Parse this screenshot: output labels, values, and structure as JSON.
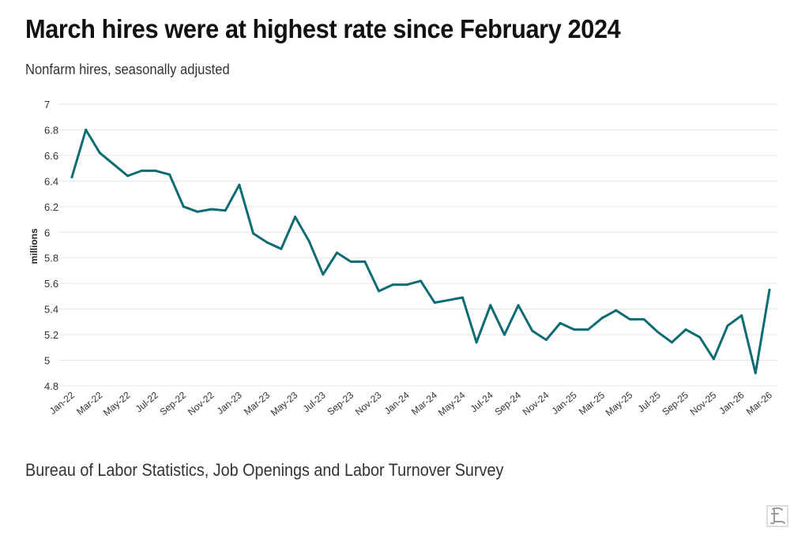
{
  "header": {
    "title": "March hires were at highest rate since February 2024",
    "subtitle": "Nonfarm hires, seasonally adjusted"
  },
  "footer": {
    "source": "Bureau of Labor Statistics, Job Openings and Labor Turnover Survey"
  },
  "colors": {
    "line": "#0d6b73",
    "grid": "#e6e6e6",
    "text": "#333333"
  },
  "chart_data": {
    "type": "line",
    "title": "March hires were at highest rate since February 2024",
    "subtitle": "Nonfarm hires, seasonally adjusted",
    "ylabel": "millions",
    "xlabel": "",
    "ylim": [
      4.8,
      7
    ],
    "yticks": [
      4.8,
      5,
      5.2,
      5.4,
      5.6,
      5.8,
      6,
      6.2,
      6.4,
      6.6,
      6.8,
      7
    ],
    "grid": true,
    "legend": "none",
    "x_tick_labels": [
      "Jan-22",
      "Mar-22",
      "May-22",
      "Jul-22",
      "Sep-22",
      "Nov-22",
      "Jan-23",
      "Mar-23",
      "May-23",
      "Jul-23",
      "Sep-23",
      "Nov-23",
      "Jan-24",
      "Mar-24",
      "May-24",
      "Jul-24",
      "Sep-24",
      "Nov-24",
      "Jan-25",
      "Mar-25",
      "May-25",
      "Jul-25",
      "Sep-25",
      "Nov-25",
      "Jan-26",
      "Mar-26"
    ],
    "x": [
      "Jan-22",
      "Feb-22",
      "Mar-22",
      "Apr-22",
      "May-22",
      "Jun-22",
      "Jul-22",
      "Aug-22",
      "Sep-22",
      "Oct-22",
      "Nov-22",
      "Dec-22",
      "Jan-23",
      "Feb-23",
      "Mar-23",
      "Apr-23",
      "May-23",
      "Jun-23",
      "Jul-23",
      "Aug-23",
      "Sep-23",
      "Oct-23",
      "Nov-23",
      "Dec-23",
      "Jan-24",
      "Feb-24",
      "Mar-24",
      "Apr-24",
      "May-24",
      "Jun-24",
      "Jul-24",
      "Aug-24",
      "Sep-24",
      "Oct-24",
      "Nov-24",
      "Dec-24",
      "Jan-25",
      "Feb-25",
      "Mar-25",
      "Apr-25",
      "May-25",
      "Jun-25",
      "Jul-25",
      "Aug-25",
      "Sep-25",
      "Oct-25",
      "Nov-25",
      "Dec-25",
      "Jan-26",
      "Feb-26",
      "Mar-26"
    ],
    "series": [
      {
        "values": [
          6.43,
          6.8,
          6.62,
          6.53,
          6.44,
          6.48,
          6.48,
          6.45,
          6.2,
          6.16,
          6.18,
          6.17,
          6.37,
          5.99,
          5.92,
          5.87,
          6.12,
          5.93,
          5.67,
          5.84,
          5.77,
          5.77,
          5.54,
          5.59,
          5.59,
          5.62,
          5.45,
          5.47,
          5.49,
          5.14,
          5.43,
          5.2,
          5.43,
          5.23,
          5.16,
          5.29,
          5.24,
          5.24,
          5.33,
          5.39,
          5.32,
          5.32,
          5.22,
          5.14,
          5.24,
          5.18,
          5.01,
          5.27,
          5.35,
          4.9,
          5.55
        ]
      }
    ]
  }
}
